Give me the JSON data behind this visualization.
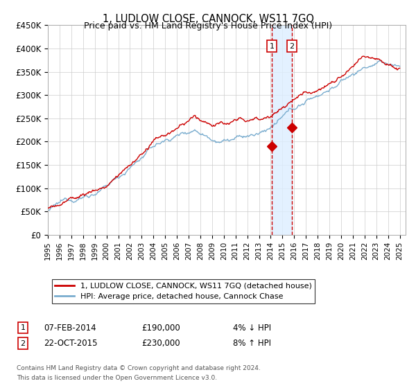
{
  "title": "1, LUDLOW CLOSE, CANNOCK, WS11 7GQ",
  "subtitle": "Price paid vs. HM Land Registry's House Price Index (HPI)",
  "legend_line1": "1, LUDLOW CLOSE, CANNOCK, WS11 7GQ (detached house)",
  "legend_line2": "HPI: Average price, detached house, Cannock Chase",
  "transaction1": {
    "label": "1",
    "date": 2014.1,
    "price": 190000,
    "text": "07-FEB-2014",
    "price_text": "£190,000",
    "pct_text": "4% ↓ HPI"
  },
  "transaction2": {
    "label": "2",
    "date": 2015.8,
    "price": 230000,
    "text": "22-OCT-2015",
    "price_text": "£230,000",
    "pct_text": "8% ↑ HPI"
  },
  "footnote1": "Contains HM Land Registry data © Crown copyright and database right 2024.",
  "footnote2": "This data is licensed under the Open Government Licence v3.0.",
  "ylim": [
    0,
    450000
  ],
  "xlim": [
    1995,
    2025.5
  ],
  "red_color": "#cc0000",
  "blue_color": "#7aadcf",
  "marker_box_color": "#cc0000",
  "shade_color": "#ddeeff",
  "grid_color": "#cccccc",
  "bg_color": "#ffffff"
}
